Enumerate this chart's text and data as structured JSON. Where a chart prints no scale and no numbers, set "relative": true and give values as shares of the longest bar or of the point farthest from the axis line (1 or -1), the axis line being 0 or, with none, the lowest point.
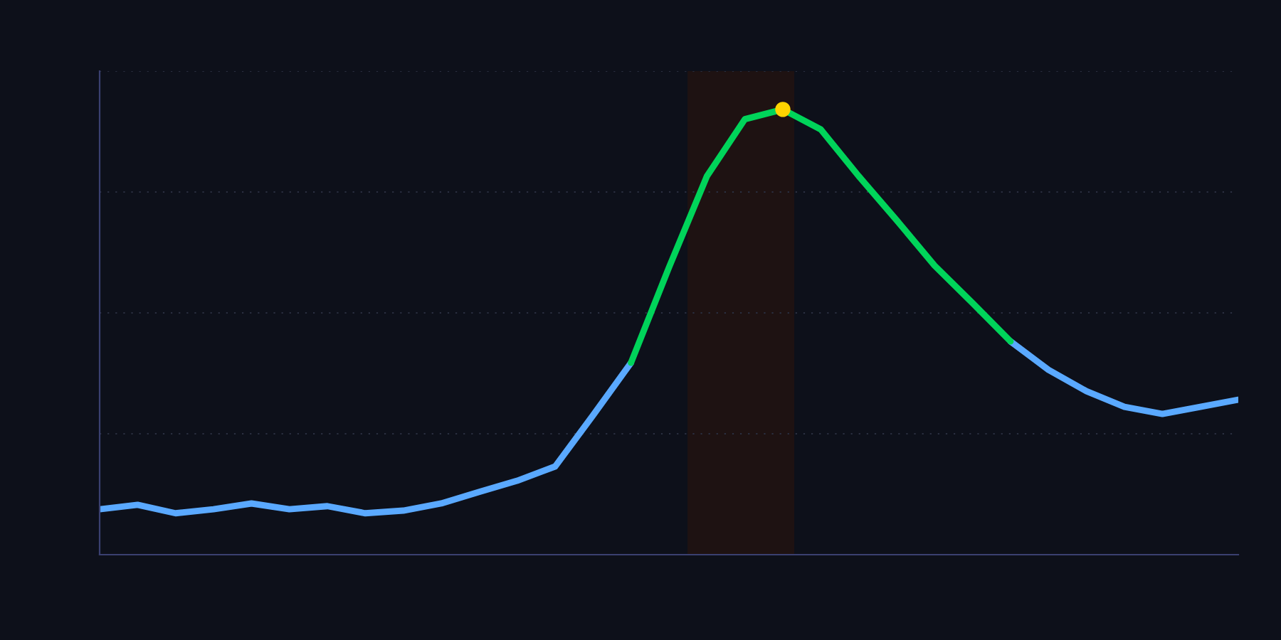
{
  "chart_data": {
    "type": "line",
    "relative": true,
    "grid": "y",
    "marker": "none",
    "line_style": "solid",
    "categories": [
      null,
      null,
      null,
      null,
      null,
      null,
      null,
      null,
      null,
      null,
      null,
      null,
      null,
      null,
      null,
      null,
      null,
      null,
      null,
      null,
      null,
      null,
      null,
      null,
      null,
      null,
      null,
      null,
      null,
      null,
      null
    ],
    "series": [
      {
        "color": "#5aa9ff",
        "values": [
          0.102,
          0.112,
          0.093,
          0.102,
          0.115,
          0.102,
          0.109,
          0.093,
          0.099,
          0.115,
          0.141,
          0.166,
          0.198,
          0.313,
          0.431,
          null,
          null,
          null,
          null,
          null,
          null,
          null,
          null,
          null,
          0.479,
          0.415,
          0.367,
          0.332,
          0.316,
          0.332,
          0.348
        ]
      },
      {
        "color": "#00d45a",
        "values": [
          null,
          null,
          null,
          null,
          null,
          null,
          null,
          null,
          null,
          null,
          null,
          null,
          null,
          null,
          0.431,
          0.645,
          0.85,
          0.978,
          1,
          0.955,
          0.85,
          0.751,
          0.649,
          0.565,
          0.479,
          null,
          null,
          null,
          null,
          null,
          null
        ]
      }
    ]
  }
}
